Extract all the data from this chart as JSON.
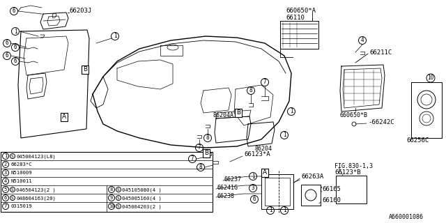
{
  "bg_color": "#ffffff",
  "lc": "#000000",
  "legend": [
    [
      "1",
      "S",
      "045004123(L8)"
    ],
    [
      "2",
      "",
      "66283*C"
    ],
    [
      "3",
      "",
      "N510009"
    ],
    [
      "4",
      "",
      "N510011"
    ],
    [
      "5",
      "S",
      "046504123(2 )"
    ],
    [
      "6",
      "S",
      "048604163(20)"
    ],
    [
      "7",
      "",
      "0315019"
    ],
    [
      "8",
      "S",
      "045105080(4 )"
    ],
    [
      "9",
      "S",
      "045005160(4 )"
    ],
    [
      "10",
      "S",
      "045004203(2 )"
    ]
  ],
  "labels": {
    "top_part": "66203J",
    "vent_a_ref": "660650*A",
    "vent_66110": "66110",
    "panel_c": "66211C",
    "panel_b_ref": "660650*B",
    "clip_c": "-66242C",
    "vent_c": "66256C",
    "radio_a": "86204A",
    "radio": "86204",
    "clip_a": "66123*A",
    "clip_b": "66123*B",
    "wire_a": "66237",
    "wire_b": "66241G",
    "wire_c": "66238",
    "conn_a": "66263A",
    "part_65": "66165",
    "part_60": "66160",
    "fig_ref": "FIG.830-1,3",
    "diagram_id": "A660001086"
  }
}
